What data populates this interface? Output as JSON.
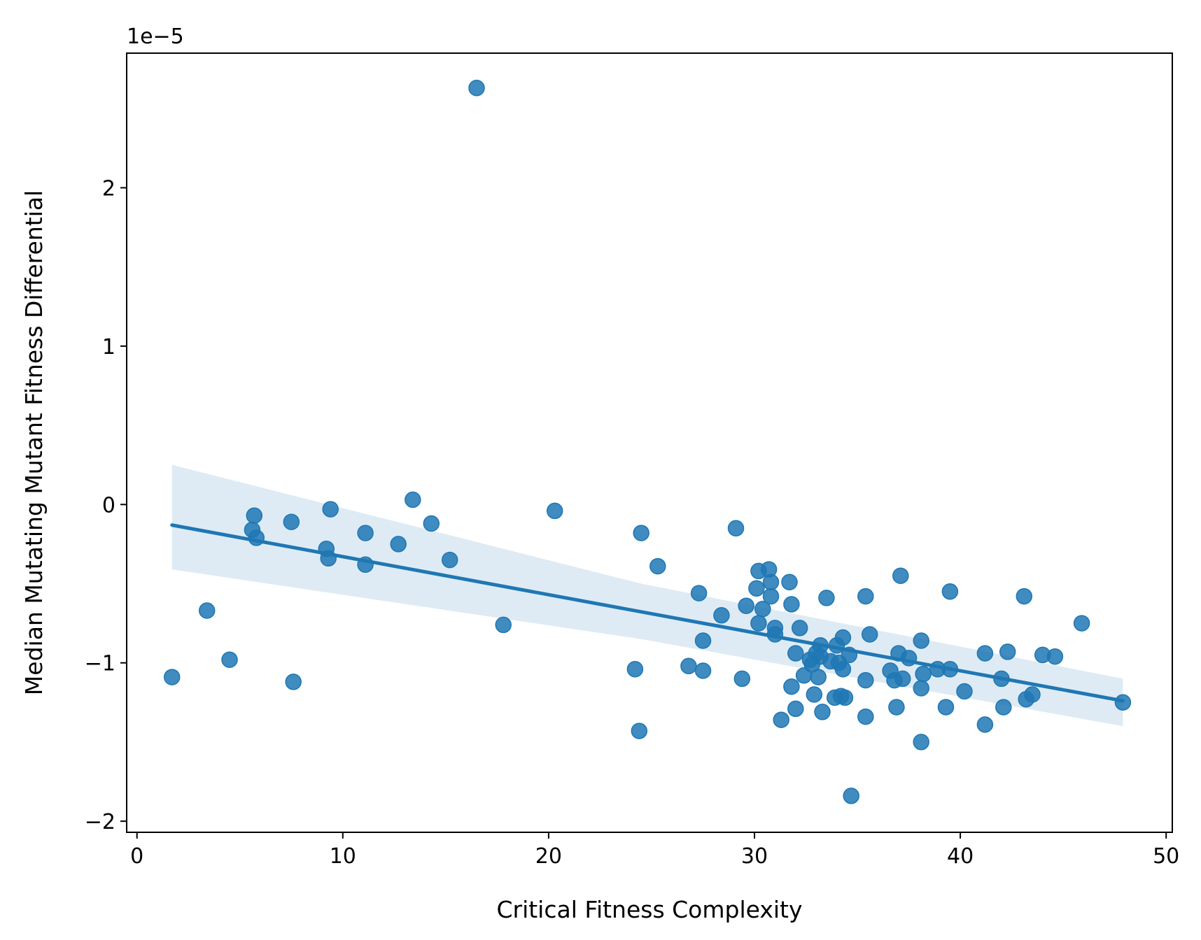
{
  "chart_data": {
    "type": "scatter",
    "title": "",
    "xlabel": "Critical Fitness Complexity",
    "ylabel": "Median Mutating Mutant Fitness Differential",
    "y_offset_label": "1e−5",
    "xlim": [
      -0.5,
      50.3
    ],
    "ylim": [
      -2.07,
      2.85
    ],
    "x_ticks": [
      0,
      10,
      20,
      30,
      40,
      50
    ],
    "x_tick_labels": [
      "0",
      "10",
      "20",
      "30",
      "40",
      "50"
    ],
    "y_ticks": [
      -2,
      -1,
      0,
      1,
      2
    ],
    "y_tick_labels": [
      "−2",
      "−1",
      "0",
      "1",
      "2"
    ],
    "grid": false,
    "legend": "none",
    "colors": {
      "points": "#1f77b4",
      "line": "#1f77b4",
      "band": "#1f77b4",
      "axes": "#000000"
    },
    "regression": {
      "x": [
        1.7,
        47.9
      ],
      "y": [
        -0.13,
        -1.24
      ],
      "ci_upper": [
        0.25,
        -1.1
      ],
      "ci_lower": [
        -0.41,
        -1.4
      ],
      "ci_mid": {
        "x": 24.5,
        "upper": -0.5,
        "lower": -0.85
      }
    },
    "points": [
      [
        16.5,
        2.63
      ],
      [
        1.7,
        -1.09
      ],
      [
        3.4,
        -0.67
      ],
      [
        4.5,
        -0.98
      ],
      [
        5.7,
        -0.07
      ],
      [
        5.6,
        -0.16
      ],
      [
        5.8,
        -0.21
      ],
      [
        7.5,
        -0.11
      ],
      [
        7.6,
        -1.12
      ],
      [
        9.2,
        -0.28
      ],
      [
        9.3,
        -0.34
      ],
      [
        9.4,
        -0.03
      ],
      [
        11.1,
        -0.18
      ],
      [
        11.1,
        -0.38
      ],
      [
        12.7,
        -0.25
      ],
      [
        13.4,
        0.03
      ],
      [
        14.3,
        -0.12
      ],
      [
        15.2,
        -0.35
      ],
      [
        17.8,
        -0.76
      ],
      [
        20.3,
        -0.04
      ],
      [
        24.2,
        -1.04
      ],
      [
        24.4,
        -1.43
      ],
      [
        24.5,
        -0.18
      ],
      [
        25.3,
        -0.39
      ],
      [
        26.8,
        -1.02
      ],
      [
        27.3,
        -0.56
      ],
      [
        27.5,
        -1.05
      ],
      [
        27.5,
        -0.86
      ],
      [
        28.4,
        -0.7
      ],
      [
        29.1,
        -0.15
      ],
      [
        29.4,
        -1.1
      ],
      [
        29.6,
        -0.64
      ],
      [
        30.1,
        -0.53
      ],
      [
        30.2,
        -0.75
      ],
      [
        30.2,
        -0.42
      ],
      [
        30.4,
        -0.66
      ],
      [
        30.7,
        -0.41
      ],
      [
        30.8,
        -0.49
      ],
      [
        30.8,
        -0.58
      ],
      [
        31.0,
        -0.78
      ],
      [
        31.0,
        -0.82
      ],
      [
        31.3,
        -1.36
      ],
      [
        31.7,
        -0.49
      ],
      [
        31.8,
        -0.63
      ],
      [
        31.8,
        -1.15
      ],
      [
        32.0,
        -0.94
      ],
      [
        32.0,
        -1.29
      ],
      [
        32.2,
        -0.78
      ],
      [
        32.4,
        -1.08
      ],
      [
        32.7,
        -0.98
      ],
      [
        32.8,
        -1.01
      ],
      [
        32.9,
        -1.2
      ],
      [
        33.0,
        -0.94
      ],
      [
        33.1,
        -1.09
      ],
      [
        33.2,
        -0.89
      ],
      [
        33.2,
        -0.96
      ],
      [
        33.3,
        -1.31
      ],
      [
        33.5,
        -0.59
      ],
      [
        33.7,
        -0.99
      ],
      [
        33.9,
        -1.22
      ],
      [
        34.0,
        -0.89
      ],
      [
        34.1,
        -1.0
      ],
      [
        34.2,
        -1.21
      ],
      [
        34.3,
        -0.84
      ],
      [
        34.3,
        -1.04
      ],
      [
        34.4,
        -1.22
      ],
      [
        34.6,
        -0.95
      ],
      [
        34.7,
        -1.84
      ],
      [
        35.4,
        -1.11
      ],
      [
        35.4,
        -0.58
      ],
      [
        35.4,
        -1.34
      ],
      [
        35.6,
        -0.82
      ],
      [
        36.6,
        -1.05
      ],
      [
        36.8,
        -1.11
      ],
      [
        36.9,
        -1.28
      ],
      [
        37.0,
        -0.94
      ],
      [
        37.1,
        -0.45
      ],
      [
        37.2,
        -1.1
      ],
      [
        37.5,
        -0.97
      ],
      [
        38.1,
        -0.86
      ],
      [
        38.1,
        -1.5
      ],
      [
        38.1,
        -1.16
      ],
      [
        38.2,
        -1.07
      ],
      [
        38.9,
        -1.04
      ],
      [
        39.3,
        -1.28
      ],
      [
        39.5,
        -1.04
      ],
      [
        39.5,
        -0.55
      ],
      [
        40.2,
        -1.18
      ],
      [
        41.2,
        -0.94
      ],
      [
        41.2,
        -1.39
      ],
      [
        42.0,
        -1.1
      ],
      [
        42.1,
        -1.28
      ],
      [
        42.3,
        -0.93
      ],
      [
        43.1,
        -0.58
      ],
      [
        43.2,
        -1.23
      ],
      [
        43.5,
        -1.2
      ],
      [
        44.0,
        -0.95
      ],
      [
        44.6,
        -0.96
      ],
      [
        45.9,
        -0.75
      ],
      [
        47.9,
        -1.25
      ]
    ]
  }
}
